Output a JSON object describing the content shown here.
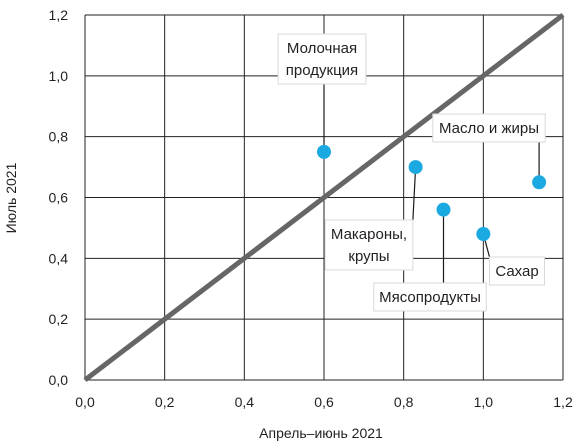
{
  "chart_data": {
    "type": "scatter",
    "xlabel": "Апрель–июнь 2021",
    "ylabel": "Июль 2021",
    "xlim": [
      0,
      1.2
    ],
    "ylim": [
      0,
      1.2
    ],
    "x_ticks": [
      "0,0",
      "0,2",
      "0,4",
      "0,6",
      "0,8",
      "1,0",
      "1,2"
    ],
    "y_ticks": [
      "0,0",
      "0,2",
      "0,4",
      "0,6",
      "0,8",
      "1,0",
      "1,2"
    ],
    "grid": true,
    "reference_line": {
      "from": [
        0,
        0
      ],
      "to": [
        1.2,
        1.2
      ]
    },
    "points": [
      {
        "label": [
          "Молочная",
          "продукция"
        ],
        "x": 0.6,
        "y": 0.75
      },
      {
        "label": [
          "Макароны,",
          "крупы"
        ],
        "x": 0.83,
        "y": 0.7
      },
      {
        "label": [
          "Мясопродукты"
        ],
        "x": 0.9,
        "y": 0.56
      },
      {
        "label": [
          "Сахар"
        ],
        "x": 1.0,
        "y": 0.48
      },
      {
        "label": [
          "Масло и жиры"
        ],
        "x": 1.14,
        "y": 0.65
      }
    ],
    "colors": {
      "point": "#1ba9e1",
      "reference_line": "#666666",
      "grid": "#222222"
    }
  }
}
